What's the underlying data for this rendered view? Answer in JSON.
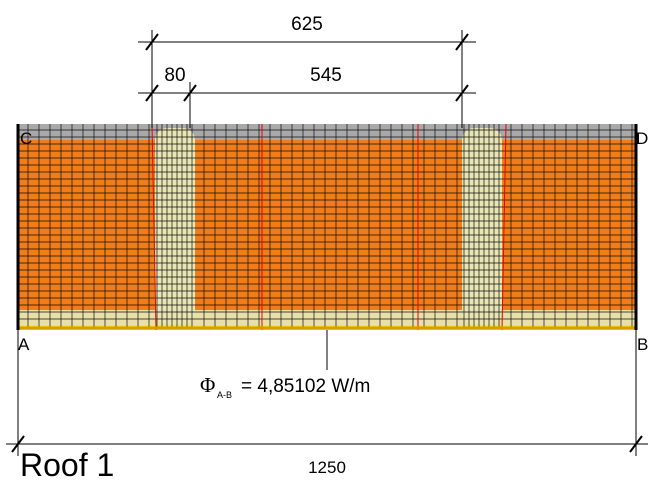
{
  "dimensions": {
    "outer_top": "625",
    "stud_width": "80",
    "stud_spacing": "545",
    "total_width": "1250"
  },
  "corners": {
    "top_left": "C",
    "top_right": "D",
    "bottom_left": "A",
    "bottom_right": "B"
  },
  "flux": {
    "symbol": "Φ",
    "subscript": "A-B",
    "value": "= 4,85102 W/m"
  },
  "title": "Roof 1"
}
